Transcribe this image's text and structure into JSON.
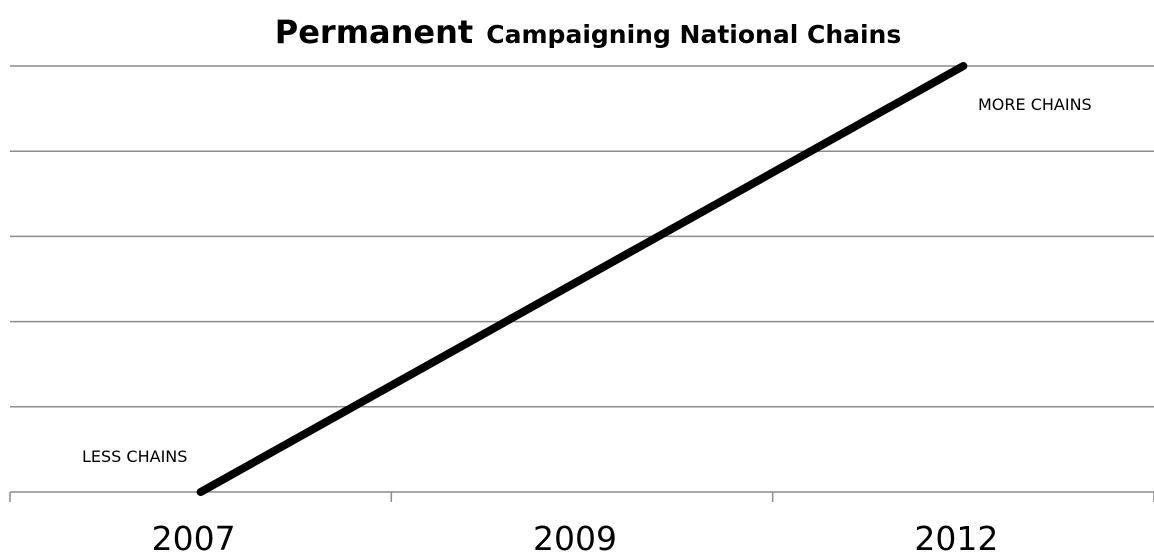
{
  "chart_data": {
    "type": "line",
    "title_main": "Permanent",
    "title_sub": "Campaigning National Chains",
    "categories": [
      "2007",
      "2009",
      "2012"
    ],
    "series": [
      {
        "values": [
          0,
          2.5,
          5
        ]
      }
    ],
    "ylim": [
      0,
      5
    ],
    "ygrid": [
      0,
      1,
      2,
      3,
      4,
      5
    ],
    "grid": true,
    "annotations": {
      "low": "LESS CHAINS",
      "high": "MORE CHAINS"
    }
  }
}
